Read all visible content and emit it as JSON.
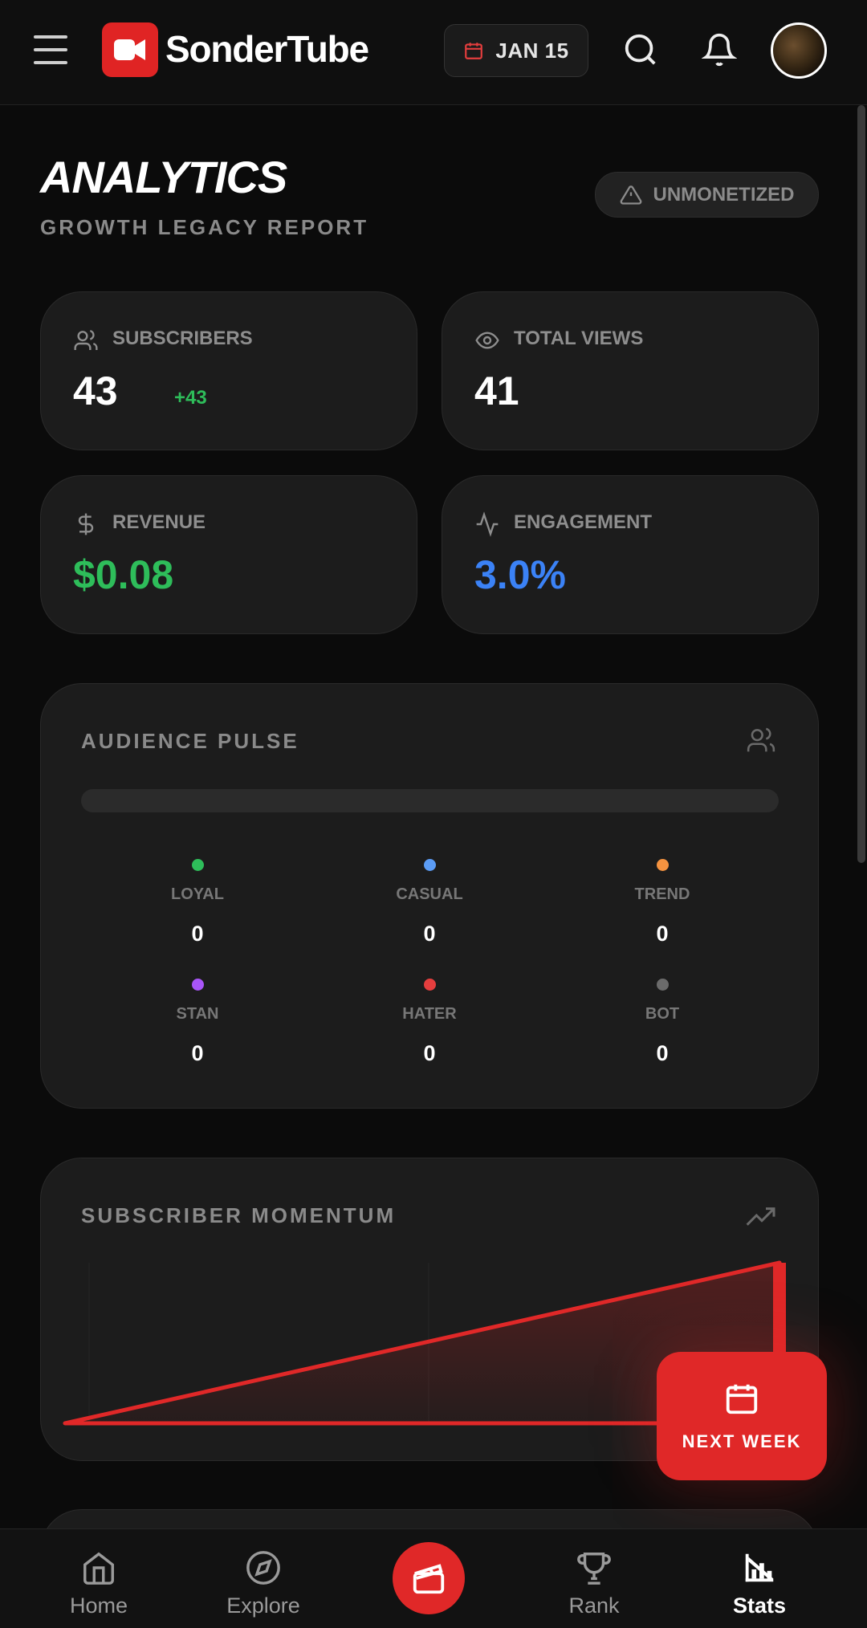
{
  "app": {
    "name": "SonderTube"
  },
  "header": {
    "date": "JAN 15"
  },
  "page": {
    "title": "ANALYTICS",
    "subtitle": "GROWTH LEGACY REPORT",
    "status": "UNMONETIZED"
  },
  "stats": {
    "subscribers": {
      "label": "SUBSCRIBERS",
      "value": "43",
      "delta": "+43"
    },
    "views": {
      "label": "TOTAL VIEWS",
      "value": "41"
    },
    "revenue": {
      "label": "REVENUE",
      "value": "$0.08",
      "color": "#2ebd5a"
    },
    "engagement": {
      "label": "ENGAGEMENT",
      "value": "3.0%",
      "color": "#3b82f6"
    }
  },
  "audience": {
    "title": "AUDIENCE PULSE",
    "segments": [
      {
        "label": "LOYAL",
        "value": "0",
        "color": "#2ebd5a"
      },
      {
        "label": "CASUAL",
        "value": "0",
        "color": "#5b9cf5"
      },
      {
        "label": "TREND",
        "value": "0",
        "color": "#f59340"
      },
      {
        "label": "STAN",
        "value": "0",
        "color": "#a855f7"
      },
      {
        "label": "HATER",
        "value": "0",
        "color": "#e53e3e"
      },
      {
        "label": "BOT",
        "value": "0",
        "color": "#6b6b6b"
      }
    ]
  },
  "momentum": {
    "title": "SUBSCRIBER MOMENTUM",
    "chart_data": {
      "type": "area",
      "x": [
        0,
        1
      ],
      "values": [
        0,
        43
      ]
    }
  },
  "fab": {
    "label": "NEXT WEEK"
  },
  "nav": {
    "home": "Home",
    "explore": "Explore",
    "rank": "Rank",
    "stats": "Stats",
    "active": "Stats"
  },
  "colors": {
    "accent": "#e02828",
    "background": "#0b0b0b",
    "card": "#1c1c1c"
  }
}
